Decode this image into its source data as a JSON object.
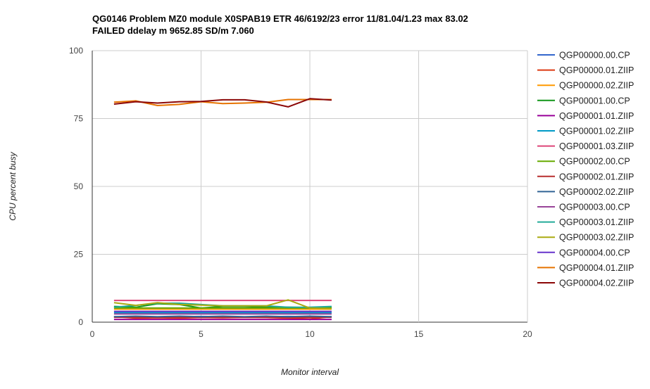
{
  "chart_data": {
    "type": "line",
    "title_lines": [
      "QG0146 Problem MZ0 module X0SPAB19 ETR 46/6192/23 error 11/81.04/1.23 max 83.02",
      "FAILED ddelay m 9652.85 SD/m 7.060"
    ],
    "xlabel": "Monitor interval",
    "ylabel": "CPU percent busy",
    "xlim": [
      0,
      20
    ],
    "ylim": [
      0,
      100
    ],
    "x_ticks": [
      0,
      5,
      10,
      15,
      20
    ],
    "y_ticks": [
      0,
      25,
      50,
      75,
      100
    ],
    "grid": true,
    "legend_position": "right",
    "x": [
      1,
      2,
      3,
      4,
      5,
      6,
      7,
      8,
      9,
      10,
      11
    ],
    "series": [
      {
        "name": "QGP00000.00.CP",
        "color": "#3366cc",
        "values": [
          2.0,
          1.8,
          1.9,
          2.0,
          2.1,
          2.0,
          1.9,
          2.0,
          2.1,
          2.0,
          2.0
        ]
      },
      {
        "name": "QGP00000.01.ZIIP",
        "color": "#dc3912",
        "values": [
          2.0,
          1.5,
          1.6,
          1.5,
          1.7,
          1.6,
          1.8,
          1.7,
          1.5,
          1.2,
          2.0
        ]
      },
      {
        "name": "QGP00000.02.ZIIP",
        "color": "#ff9900",
        "values": [
          4.8,
          4.8,
          4.8,
          4.8,
          4.8,
          4.8,
          4.8,
          4.8,
          4.8,
          4.8,
          4.8
        ]
      },
      {
        "name": "QGP00001.00.CP",
        "color": "#109618",
        "values": [
          5.8,
          5.5,
          6.8,
          6.5,
          5.2,
          5.8,
          5.8,
          5.5,
          5.5,
          5.4,
          5.5
        ]
      },
      {
        "name": "QGP00001.01.ZIIP",
        "color": "#990099",
        "values": [
          1.0,
          1.0,
          1.0,
          1.0,
          1.0,
          1.0,
          1.0,
          1.0,
          1.0,
          1.0,
          1.0
        ]
      },
      {
        "name": "QGP00001.02.ZIIP",
        "color": "#0099c6",
        "values": [
          3.5,
          3.5,
          3.5,
          3.5,
          3.5,
          3.5,
          3.5,
          3.5,
          3.5,
          3.5,
          3.5
        ]
      },
      {
        "name": "QGP00001.03.ZIIP",
        "color": "#dd4477",
        "values": [
          8.0,
          8.0,
          8.0,
          8.0,
          8.0,
          8.0,
          8.0,
          8.0,
          8.0,
          8.0,
          8.0
        ]
      },
      {
        "name": "QGP00002.00.CP",
        "color": "#66aa00",
        "values": [
          5.2,
          5.2,
          5.2,
          5.2,
          5.2,
          5.2,
          5.2,
          5.2,
          5.2,
          5.2,
          5.2
        ]
      },
      {
        "name": "QGP00002.01.ZIIP",
        "color": "#b82e2e",
        "values": [
          1.8,
          1.8,
          1.8,
          1.8,
          1.8,
          1.8,
          1.8,
          1.8,
          1.8,
          1.8,
          1.8
        ]
      },
      {
        "name": "QGP00002.02.ZIIP",
        "color": "#316395",
        "values": [
          2.0,
          2.2,
          2.0,
          2.2,
          2.0,
          2.2,
          2.0,
          2.2,
          2.0,
          2.2,
          2.0
        ]
      },
      {
        "name": "QGP00003.00.CP",
        "color": "#994499",
        "values": [
          3.0,
          3.0,
          3.0,
          3.0,
          3.0,
          3.0,
          3.0,
          3.0,
          3.0,
          3.0,
          3.0
        ]
      },
      {
        "name": "QGP00003.01.ZIIP",
        "color": "#22aa99",
        "values": [
          5.5,
          6.2,
          7.0,
          7.0,
          6.5,
          6.0,
          6.0,
          6.0,
          5.5,
          5.5,
          5.8
        ]
      },
      {
        "name": "QGP00003.02.ZIIP",
        "color": "#aaaa11",
        "values": [
          7.2,
          6.2,
          7.2,
          6.5,
          6.3,
          6.0,
          6.0,
          6.0,
          8.2,
          5.2,
          5.0
        ]
      },
      {
        "name": "QGP00004.00.CP",
        "color": "#6633cc",
        "values": [
          4.0,
          4.0,
          4.0,
          4.0,
          4.0,
          4.0,
          4.0,
          4.0,
          4.0,
          4.0,
          4.0
        ]
      },
      {
        "name": "QGP00004.01.ZIIP",
        "color": "#e67300",
        "values": [
          81.0,
          81.5,
          79.8,
          80.2,
          81.2,
          80.5,
          80.7,
          81.0,
          82.0,
          82.0,
          82.0
        ]
      },
      {
        "name": "QGP00004.02.ZIIP",
        "color": "#8b0707",
        "values": [
          80.3,
          81.2,
          80.7,
          81.2,
          81.3,
          81.9,
          81.9,
          81.1,
          79.3,
          82.3,
          81.8
        ]
      }
    ]
  }
}
